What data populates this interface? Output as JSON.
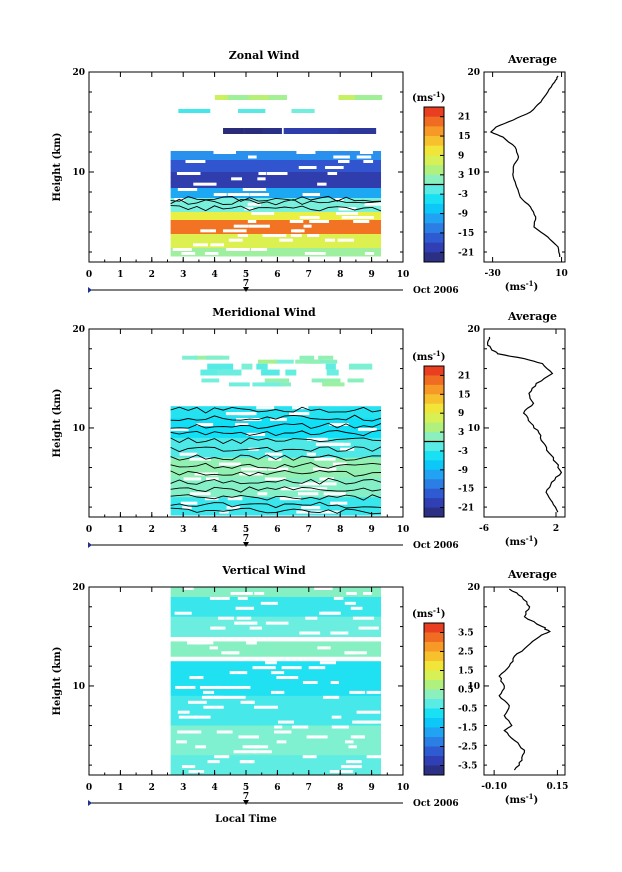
{
  "figure": {
    "x_axis_label": "Local Time",
    "date_label": "Oct 2006",
    "day_tick_label": "7",
    "unit_label": "(ms",
    "unit_exponent": "-1",
    "unit_close": ")",
    "average_title": "Average"
  },
  "chart_data": [
    {
      "type": "heatmap",
      "name": "zonal",
      "title": "Zonal Wind",
      "xlabel": "",
      "ylabel": "Height (km)",
      "xlim": [
        0,
        10
      ],
      "ylim": [
        1,
        20
      ],
      "x_ticks": [
        0,
        1,
        2,
        3,
        4,
        5,
        6,
        7,
        8,
        9,
        10
      ],
      "y_ticks": [
        10,
        20
      ],
      "data_time_range": [
        2.6,
        9.3
      ],
      "colorbar": {
        "label": "(ms-1)",
        "ticks": [
          21,
          15,
          9,
          3,
          -3,
          -9,
          -15,
          -21
        ],
        "range": [
          -24,
          24
        ],
        "zero_contour": true
      },
      "bands": [
        {
          "y": [
            17.2,
            17.7
          ],
          "value": 5,
          "coverage": "patchy"
        },
        {
          "y": [
            15.9,
            16.3
          ],
          "value": -2,
          "coverage": "sparse"
        },
        {
          "y": [
            13.8,
            14.4
          ],
          "value": -22,
          "coverage": "patchy"
        },
        {
          "y": [
            11.2,
            12.1
          ],
          "value": -12,
          "coverage": "full"
        },
        {
          "y": [
            10.0,
            11.2
          ],
          "value": -17,
          "coverage": "full"
        },
        {
          "y": [
            8.4,
            10.0
          ],
          "value": -20,
          "coverage": "full"
        },
        {
          "y": [
            7.4,
            8.4
          ],
          "value": -10,
          "coverage": "full"
        },
        {
          "y": [
            6.0,
            7.4
          ],
          "value": 0,
          "coverage": "full"
        },
        {
          "y": [
            5.2,
            6.0
          ],
          "value": 9,
          "coverage": "full"
        },
        {
          "y": [
            3.8,
            5.2
          ],
          "value": 19,
          "coverage": "full"
        },
        {
          "y": [
            2.4,
            3.8
          ],
          "value": 8,
          "coverage": "full"
        },
        {
          "y": [
            1.6,
            2.4
          ],
          "value": 3,
          "coverage": "full"
        }
      ],
      "average": {
        "title": "Average",
        "xlim": [
          -35,
          12
        ],
        "x_ticks": [
          -30,
          10
        ],
        "x_tick_labels": [
          "-30",
          "10"
        ],
        "y_ticks": [
          10,
          20
        ],
        "xlabel": "(ms-1)",
        "heights": [
          1.5,
          2.5,
          3.5,
          4.5,
          5.5,
          6.5,
          7.5,
          8.5,
          9.5,
          10.5,
          11.5,
          12.5,
          13.5,
          14.0,
          14.5,
          15.2,
          16.0,
          17.0,
          18.0,
          19.0,
          19.6
        ],
        "values": [
          9,
          8,
          2,
          -6,
          -5,
          -8,
          -14,
          -16,
          -18,
          -18,
          -15,
          -17,
          -24,
          -31,
          -28,
          -18,
          -8,
          -2,
          2,
          6,
          8
        ]
      }
    },
    {
      "type": "heatmap",
      "name": "meridional",
      "title": "Meridional Wind",
      "xlabel": "",
      "ylabel": "Height (km)",
      "xlim": [
        0,
        10
      ],
      "ylim": [
        1,
        20
      ],
      "x_ticks": [
        0,
        1,
        2,
        3,
        4,
        5,
        6,
        7,
        8,
        9,
        10
      ],
      "y_ticks": [
        10,
        20
      ],
      "data_time_range": [
        2.6,
        9.3
      ],
      "colorbar": {
        "label": "(ms-1)",
        "ticks": [
          21,
          15,
          9,
          3,
          -3,
          -9,
          -15,
          -21
        ],
        "range": [
          -24,
          24
        ],
        "zero_contour": true
      },
      "bands": [
        {
          "y": [
            16.5,
            17.3
          ],
          "value": 2,
          "coverage": "sparse"
        },
        {
          "y": [
            15.3,
            16.5
          ],
          "value": -1,
          "coverage": "sparse"
        },
        {
          "y": [
            14.2,
            15.0
          ],
          "value": 1,
          "coverage": "sparse"
        },
        {
          "y": [
            11.0,
            12.2
          ],
          "value": -4,
          "coverage": "full"
        },
        {
          "y": [
            9.0,
            11.0
          ],
          "value": -5,
          "coverage": "full"
        },
        {
          "y": [
            7.0,
            9.0
          ],
          "value": -2,
          "coverage": "full"
        },
        {
          "y": [
            5.0,
            7.0
          ],
          "value": 2,
          "coverage": "full"
        },
        {
          "y": [
            3.0,
            5.0
          ],
          "value": 1,
          "coverage": "full"
        },
        {
          "y": [
            1.2,
            3.0
          ],
          "value": -3,
          "coverage": "full"
        }
      ],
      "average": {
        "title": "Average",
        "xlim": [
          -6,
          3
        ],
        "x_ticks": [
          -6,
          2
        ],
        "x_tick_labels": [
          "-6",
          "2"
        ],
        "y_ticks": [
          10,
          20
        ],
        "xlabel": "(ms-1)",
        "heights": [
          1.5,
          2.5,
          3.5,
          4.5,
          5.5,
          6.5,
          7.5,
          8.5,
          9.5,
          10.5,
          11.5,
          12.5,
          13.5,
          14.5,
          15.5,
          16.5,
          17.0,
          17.5,
          18.0,
          18.5,
          19.2
        ],
        "values": [
          2.2,
          1.6,
          0.9,
          1.5,
          2.6,
          2.0,
          1.2,
          0.6,
          0.1,
          -0.8,
          -1.6,
          -0.5,
          -1.0,
          -0.2,
          1.6,
          0.5,
          -1.5,
          -4.5,
          -5.2,
          -5.6,
          -5.4
        ]
      }
    },
    {
      "type": "heatmap",
      "name": "vertical",
      "title": "Vertical Wind",
      "xlabel": "Local Time",
      "ylabel": "Height (km)",
      "xlim": [
        0,
        10
      ],
      "ylim": [
        1,
        20
      ],
      "x_ticks": [
        0,
        1,
        2,
        3,
        4,
        5,
        6,
        7,
        8,
        9,
        10
      ],
      "y_ticks": [
        10,
        20
      ],
      "data_time_range": [
        2.6,
        9.3
      ],
      "colorbar": {
        "label": "(ms-1)",
        "ticks": [
          3.5,
          2.5,
          1.5,
          0.5,
          -0.5,
          -1.5,
          -2.5,
          -3.5
        ],
        "range": [
          -4,
          4
        ],
        "zero_contour": false
      },
      "bands": [
        {
          "y": [
            19.0,
            20.0
          ],
          "value": 0.2,
          "coverage": "full"
        },
        {
          "y": [
            17.0,
            19.0
          ],
          "value": -0.5,
          "coverage": "full"
        },
        {
          "y": [
            15.0,
            17.0
          ],
          "value": -0.1,
          "coverage": "full"
        },
        {
          "y": [
            13.0,
            14.5
          ],
          "value": 0.2,
          "coverage": "full"
        },
        {
          "y": [
            9.0,
            12.5
          ],
          "value": -0.7,
          "coverage": "full"
        },
        {
          "y": [
            6.0,
            9.0
          ],
          "value": -0.4,
          "coverage": "full"
        },
        {
          "y": [
            3.0,
            6.0
          ],
          "value": 0.1,
          "coverage": "full"
        },
        {
          "y": [
            1.0,
            3.0
          ],
          "value": -0.2,
          "coverage": "full"
        }
      ],
      "average": {
        "title": "Average",
        "xlim": [
          -0.14,
          0.18
        ],
        "x_ticks": [
          -0.1,
          0.15
        ],
        "x_tick_labels": [
          "-0.10",
          "0.15"
        ],
        "y_ticks": [
          10,
          20
        ],
        "xlabel": "(ms-1)",
        "heights": [
          1.5,
          2.5,
          3.5,
          4.5,
          5.5,
          6.0,
          7.0,
          8.0,
          9.0,
          10.0,
          11.0,
          12.0,
          13.0,
          14.0,
          15.0,
          15.5,
          16.0,
          17.0,
          18.0,
          19.0,
          19.8
        ],
        "values": [
          -0.02,
          0.01,
          0.02,
          -0.02,
          -0.06,
          -0.03,
          -0.06,
          -0.04,
          -0.08,
          -0.06,
          -0.08,
          -0.04,
          -0.02,
          0.03,
          0.08,
          0.12,
          0.09,
          0.02,
          0.04,
          0.01,
          -0.04
        ]
      }
    }
  ]
}
